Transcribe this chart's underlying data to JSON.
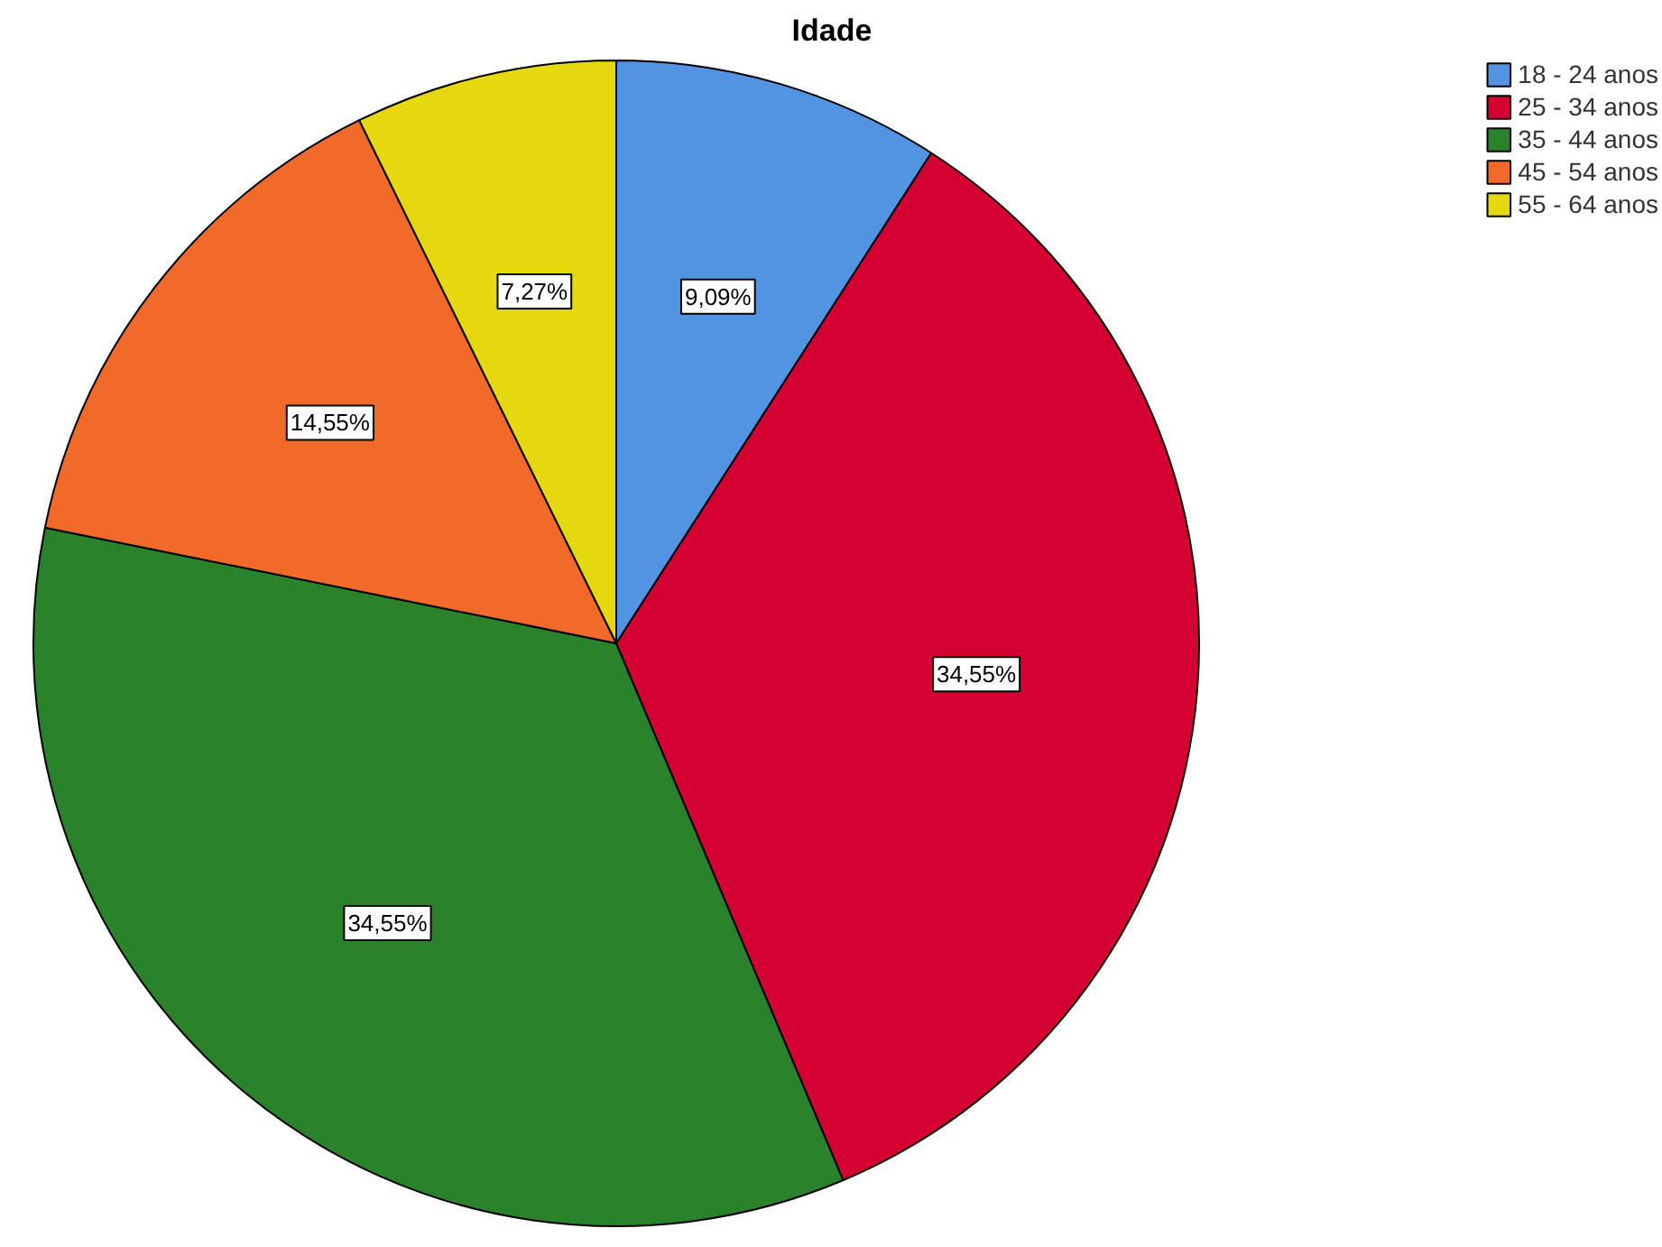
{
  "chart_data": {
    "type": "pie",
    "title": "Idade",
    "categories": [
      "18 - 24 anos",
      "25 - 34 anos",
      "35 - 44 anos",
      "45 - 54 anos",
      "55 - 64 anos"
    ],
    "values": [
      9.09,
      34.55,
      34.55,
      14.55,
      7.27
    ],
    "colors": [
      "#5294e2",
      "#d50032",
      "#2a832a",
      "#f26a2a",
      "#e5d80f"
    ],
    "value_labels": [
      "9,09%",
      "34,55%",
      "34,55%",
      "14,55%",
      "7,27%"
    ],
    "legend": "top right"
  }
}
